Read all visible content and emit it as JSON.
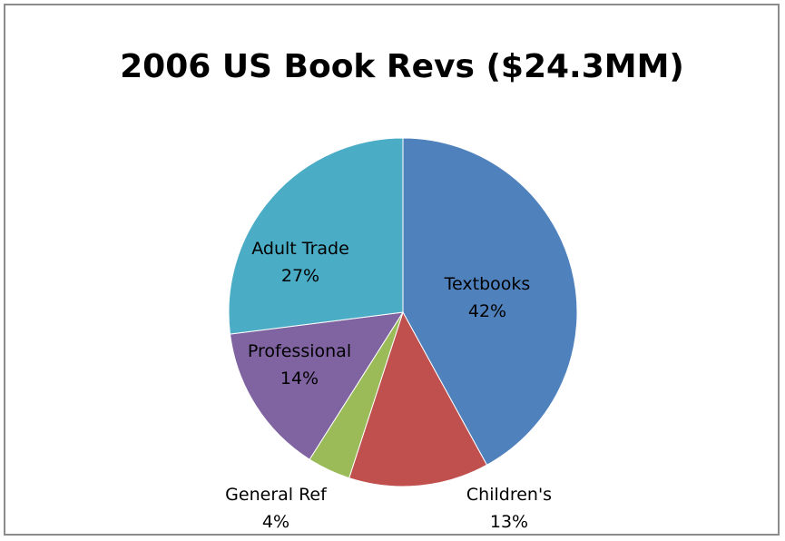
{
  "chart_data": {
    "type": "pie",
    "title": "2006 US Book Revs ($24.3MM)",
    "start_angle_deg": 0,
    "direction": "clockwise",
    "slices": [
      {
        "name": "Textbooks",
        "value": 42,
        "label": "42%",
        "color": "#4f81bd"
      },
      {
        "name": "Children's",
        "value": 13,
        "label": "13%",
        "color": "#c0504d"
      },
      {
        "name": "General Ref",
        "value": 4,
        "label": "4%",
        "color": "#9bbb59"
      },
      {
        "name": "Professional",
        "value": 14,
        "label": "14%",
        "color": "#8064a2"
      },
      {
        "name": "Adult Trade",
        "value": 27,
        "label": "27%",
        "color": "#4bacc6"
      }
    ]
  }
}
